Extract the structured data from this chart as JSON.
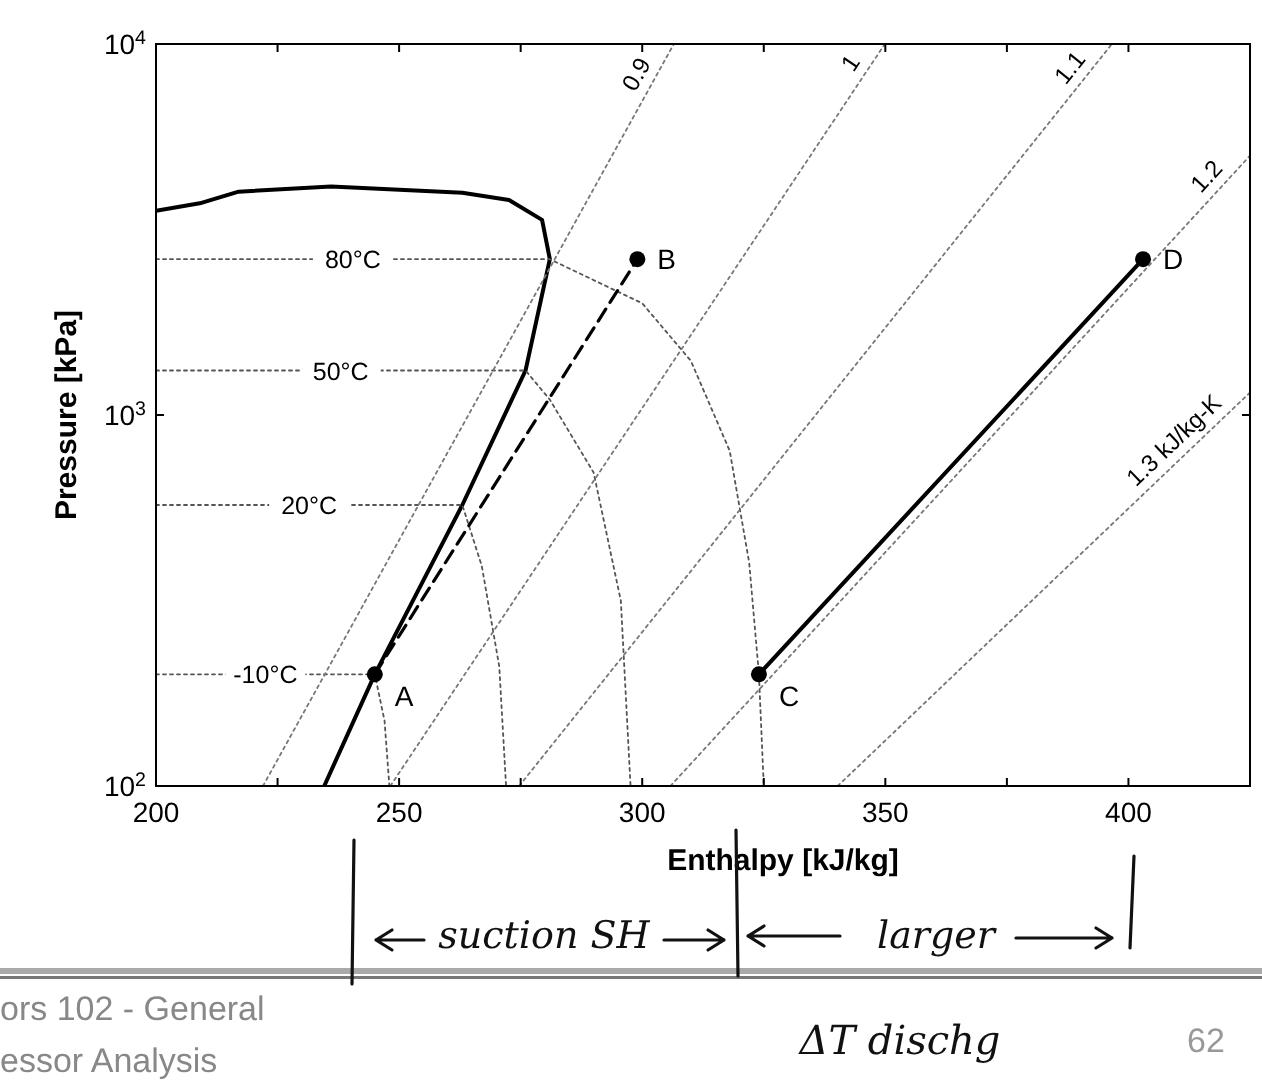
{
  "chart_data": {
    "type": "line",
    "xlabel": "Enthalpy [kJ/kg]",
    "ylabel": "Pressure [kPa]",
    "log": "y",
    "xlim": [
      200,
      425
    ],
    "ylim": [
      100,
      10000
    ],
    "xticks": [
      200,
      {
        "value": 225,
        "label": null
      },
      250,
      {
        "value": 275,
        "label": null
      },
      300,
      {
        "value": 325,
        "label": null
      },
      350,
      {
        "value": 375,
        "label": null
      },
      400
    ],
    "yticks": [
      {
        "value": 100,
        "label": "10$^{2}$"
      },
      {
        "value": 1000,
        "label": "10$^{3}$"
      },
      {
        "value": 10000,
        "label": "10$^{4}$"
      }
    ],
    "series": [
      {
        "color": "#000000",
        "line_style": "solid",
        "x": [
          200,
          209,
          217,
          236,
          263,
          272.6,
          279.4,
          281,
          276,
          263,
          245,
          234.6
        ],
        "values": [
          3550,
          3720,
          4000,
          4130,
          3970,
          3800,
          3357,
          2630,
          1318,
          572,
          200,
          100
        ]
      },
      {
        "name": "80°C",
        "color": "#555555",
        "line_style": "dotted",
        "x": [
          200,
          281,
          300,
          310,
          318,
          322,
          324,
          325
        ],
        "values": [
          2630,
          2630,
          2000,
          1400,
          800,
          400,
          200,
          100
        ]
      },
      {
        "name": "50°C",
        "color": "#555555",
        "line_style": "dotted",
        "x": [
          200,
          276,
          281,
          290,
          295.6,
          297.6
        ],
        "values": [
          1318,
          1318,
          1100,
          700,
          316,
          100
        ]
      },
      {
        "name": "20°C",
        "color": "#555555",
        "line_style": "dotted",
        "x": [
          200,
          263,
          267,
          270.6,
          272
        ],
        "values": [
          572,
          572,
          392,
          210,
          100
        ]
      },
      {
        "name": "-10°C",
        "color": "#555555",
        "line_style": "dotted",
        "x": [
          200,
          245,
          247,
          248
        ],
        "values": [
          200,
          200,
          150,
          100
        ]
      },
      {
        "name": "0.9",
        "color": "#777777",
        "line_style": "dotted",
        "x": [
          222,
          306.5
        ],
        "values": [
          100,
          10000
        ]
      },
      {
        "name": "1",
        "color": "#777777",
        "line_style": "dotted",
        "x": [
          248.2,
          349.9
        ],
        "values": [
          100,
          10000
        ]
      },
      {
        "name": "1.1",
        "color": "#777777",
        "line_style": "dotted",
        "x": [
          274.7,
          396.6
        ],
        "values": [
          100,
          10000
        ]
      },
      {
        "name": "1.2",
        "color": "#777777",
        "line_style": "dotted",
        "x": [
          305.8,
          425
        ],
        "values": [
          100,
          5000
        ]
      },
      {
        "name": "1.3 kJ/kg-K",
        "color": "#777777",
        "line_style": "dotted",
        "x": [
          340.2,
          425
        ],
        "values": [
          100,
          1150
        ]
      },
      {
        "color": "#000000",
        "line_style": "dashed",
        "x": [
          245,
          299
        ],
        "values": [
          200,
          2630
        ]
      },
      {
        "color": "#000000",
        "line_style": "solid",
        "x": [
          324,
          403
        ],
        "values": [
          200,
          2630
        ]
      },
      {
        "type": "scatter",
        "marker": "circle",
        "color": "#000000",
        "x": [
          245,
          299,
          324,
          403
        ],
        "values": [
          200,
          2630,
          200,
          2630
        ]
      }
    ],
    "annotations": [
      {
        "text": "A",
        "x": 245,
        "y": 200
      },
      {
        "text": "B",
        "x": 299,
        "y": 2630
      },
      {
        "text": "C",
        "x": 324,
        "y": 200
      },
      {
        "text": "D",
        "x": 403,
        "y": 2630
      },
      "suction SH",
      "larger",
      "ΔT dischg",
      "ors 102 - General",
      "essor Analysis",
      "62"
    ]
  }
}
